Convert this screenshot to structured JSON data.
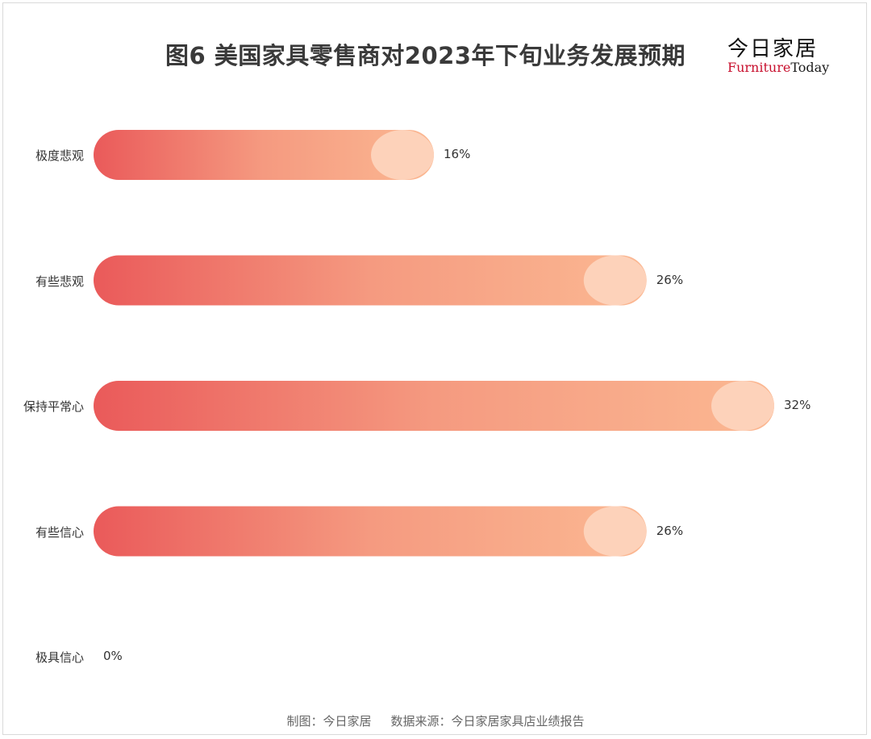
{
  "chart_data": {
    "type": "bar",
    "orientation": "horizontal",
    "title": "图6  美国家具零售商对2023年下旬业务发展预期",
    "categories": [
      "极度悲观",
      "有些悲观",
      "保持平常心",
      "有些信心",
      "极具信心"
    ],
    "values": [
      16,
      26,
      32,
      26,
      0
    ],
    "value_labels": [
      "16%",
      "26%",
      "32%",
      "26%",
      "0%"
    ],
    "xlim": [
      0,
      32
    ],
    "grid": false,
    "legend": "none",
    "colors": {
      "gradient_start": "#ea5a5a",
      "gradient_mid": "#f59a80",
      "gradient_end": "#fbb892",
      "cap": "#fdd2ba"
    }
  },
  "brand": {
    "name_cn": "今日家居",
    "name_en_part1": "Furniture",
    "name_en_part2": "Today"
  },
  "footer": {
    "made_by": "制图：今日家居",
    "source": "数据来源：今日家居家具店业绩报告"
  }
}
